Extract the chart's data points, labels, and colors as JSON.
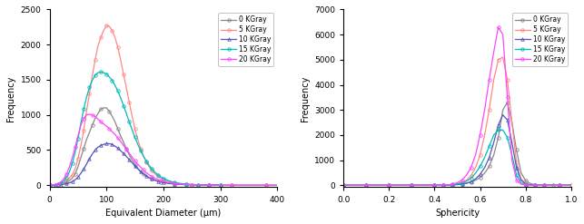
{
  "left_chart": {
    "xlabel": "Equivalent Diameter (μm)",
    "ylabel": "Frequency",
    "xlim": [
      0,
      400
    ],
    "ylim": [
      -30,
      2500
    ],
    "yticks": [
      0,
      500,
      1000,
      1500,
      2000,
      2500
    ],
    "xticks": [
      0,
      100,
      200,
      300,
      400
    ],
    "series": {
      "0 KGray": {
        "color": "#888888",
        "marker": "o",
        "x": [
          0,
          5,
          10,
          15,
          20,
          25,
          30,
          35,
          40,
          45,
          50,
          55,
          60,
          65,
          70,
          75,
          80,
          85,
          90,
          95,
          100,
          105,
          110,
          115,
          120,
          125,
          130,
          135,
          140,
          145,
          150,
          155,
          160,
          165,
          170,
          175,
          180,
          185,
          190,
          195,
          200,
          210,
          220,
          230,
          240,
          250,
          260,
          270,
          280,
          290,
          300,
          320,
          340,
          360,
          380,
          400
        ],
        "y": [
          0,
          2,
          5,
          10,
          18,
          28,
          45,
          65,
          100,
          160,
          260,
          390,
          520,
          650,
          750,
          850,
          950,
          1020,
          1080,
          1100,
          1100,
          1050,
          980,
          900,
          800,
          700,
          610,
          520,
          430,
          360,
          290,
          240,
          195,
          160,
          130,
          105,
          88,
          72,
          58,
          47,
          38,
          28,
          20,
          14,
          10,
          7,
          5,
          4,
          3,
          2,
          1,
          0,
          0,
          0,
          0,
          0
        ]
      },
      "5 KGray": {
        "color": "#ff8888",
        "marker": "o",
        "x": [
          0,
          5,
          10,
          15,
          20,
          25,
          30,
          35,
          40,
          45,
          50,
          55,
          60,
          65,
          70,
          75,
          80,
          85,
          90,
          95,
          100,
          105,
          110,
          115,
          120,
          125,
          130,
          135,
          140,
          145,
          150,
          155,
          160,
          165,
          170,
          175,
          180,
          185,
          190,
          195,
          200,
          210,
          220,
          230,
          240,
          250,
          260,
          270,
          280,
          290,
          300,
          320
        ],
        "y": [
          0,
          2,
          5,
          12,
          22,
          40,
          65,
          100,
          150,
          230,
          380,
          560,
          780,
          1050,
          1300,
          1550,
          1780,
          1980,
          2100,
          2200,
          2270,
          2260,
          2200,
          2100,
          1960,
          1780,
          1580,
          1380,
          1180,
          980,
          800,
          650,
          520,
          415,
          330,
          260,
          205,
          162,
          128,
          101,
          80,
          50,
          32,
          20,
          13,
          8,
          5,
          3,
          2,
          1,
          0,
          0
        ]
      },
      "10 KGray": {
        "color": "#5555bb",
        "marker": "^",
        "x": [
          0,
          5,
          10,
          15,
          20,
          25,
          30,
          35,
          40,
          45,
          50,
          55,
          60,
          65,
          70,
          75,
          80,
          85,
          90,
          95,
          100,
          105,
          110,
          115,
          120,
          125,
          130,
          135,
          140,
          145,
          150,
          155,
          160,
          165,
          170,
          175,
          180,
          185,
          190,
          195,
          200,
          210,
          220,
          230,
          240,
          250,
          260,
          270,
          280,
          290,
          300
        ],
        "y": [
          0,
          1,
          2,
          5,
          8,
          14,
          22,
          33,
          50,
          75,
          115,
          168,
          230,
          300,
          375,
          440,
          500,
          540,
          565,
          580,
          590,
          590,
          578,
          555,
          525,
          490,
          450,
          408,
          365,
          320,
          275,
          232,
          193,
          159,
          130,
          106,
          86,
          70,
          57,
          46,
          37,
          24,
          15,
          10,
          6,
          4,
          3,
          2,
          1,
          1,
          0
        ]
      },
      "15 KGray": {
        "color": "#00bbbb",
        "marker": "o",
        "x": [
          0,
          5,
          10,
          15,
          20,
          25,
          30,
          35,
          40,
          45,
          50,
          55,
          60,
          65,
          70,
          75,
          80,
          85,
          90,
          95,
          100,
          105,
          110,
          115,
          120,
          125,
          130,
          135,
          140,
          145,
          150,
          155,
          160,
          165,
          170,
          175,
          180,
          185,
          190,
          195,
          200,
          210,
          220,
          230,
          240,
          250,
          260,
          270,
          280,
          290,
          300
        ],
        "y": [
          0,
          2,
          5,
          15,
          30,
          60,
          110,
          190,
          310,
          470,
          660,
          880,
          1080,
          1250,
          1390,
          1490,
          1560,
          1600,
          1610,
          1600,
          1580,
          1540,
          1490,
          1420,
          1340,
          1240,
          1130,
          1020,
          900,
          790,
          680,
          580,
          490,
          410,
          340,
          280,
          230,
          185,
          150,
          120,
          95,
          60,
          38,
          24,
          15,
          9,
          6,
          4,
          2,
          1,
          0
        ]
      },
      "20 KGray": {
        "color": "#ff44ff",
        "marker": "o",
        "x": [
          0,
          5,
          10,
          15,
          20,
          25,
          30,
          35,
          40,
          45,
          50,
          55,
          60,
          65,
          70,
          75,
          80,
          85,
          90,
          95,
          100,
          105,
          110,
          115,
          120,
          125,
          130,
          135,
          140,
          145,
          150,
          155,
          160,
          165,
          170,
          175,
          180,
          185,
          190,
          195,
          200,
          210,
          220,
          230,
          240,
          250,
          260,
          270,
          280,
          290,
          300,
          320,
          340,
          360,
          380,
          400
        ],
        "y": [
          0,
          2,
          8,
          20,
          45,
          90,
          160,
          260,
          390,
          540,
          700,
          850,
          950,
          1000,
          1010,
          1000,
          975,
          940,
          900,
          870,
          840,
          800,
          760,
          720,
          670,
          620,
          565,
          510,
          455,
          400,
          348,
          300,
          255,
          215,
          178,
          147,
          121,
          99,
          81,
          66,
          53,
          35,
          23,
          15,
          9,
          6,
          4,
          2,
          1,
          1,
          0,
          0,
          0,
          0,
          0,
          0
        ]
      }
    }
  },
  "right_chart": {
    "xlabel": "Sphericity",
    "ylabel": "Frequency",
    "xlim": [
      0.0,
      1.0
    ],
    "ylim": [
      -80,
      7000
    ],
    "yticks": [
      0,
      1000,
      2000,
      3000,
      4000,
      5000,
      6000,
      7000
    ],
    "xticks": [
      0.0,
      0.2,
      0.4,
      0.6,
      0.8,
      1.0
    ],
    "series": {
      "0 KGray": {
        "color": "#888888",
        "marker": "o",
        "x": [
          0.0,
          0.05,
          0.1,
          0.15,
          0.2,
          0.25,
          0.3,
          0.35,
          0.4,
          0.42,
          0.44,
          0.46,
          0.48,
          0.5,
          0.52,
          0.54,
          0.56,
          0.58,
          0.6,
          0.62,
          0.64,
          0.66,
          0.68,
          0.7,
          0.72,
          0.74,
          0.76,
          0.78,
          0.8,
          0.82,
          0.84,
          0.86,
          0.88,
          0.9,
          0.92,
          0.95,
          1.0
        ],
        "y": [
          0,
          0,
          0,
          0,
          0,
          0,
          0,
          0,
          2,
          4,
          6,
          10,
          18,
          30,
          50,
          80,
          130,
          200,
          310,
          480,
          750,
          1200,
          1900,
          3000,
          3300,
          2500,
          1400,
          500,
          180,
          70,
          25,
          10,
          4,
          2,
          1,
          0,
          0
        ]
      },
      "5 KGray": {
        "color": "#ff8888",
        "marker": "o",
        "x": [
          0.0,
          0.05,
          0.1,
          0.15,
          0.2,
          0.25,
          0.3,
          0.35,
          0.4,
          0.42,
          0.44,
          0.46,
          0.48,
          0.5,
          0.52,
          0.54,
          0.56,
          0.58,
          0.6,
          0.62,
          0.64,
          0.66,
          0.68,
          0.7,
          0.72,
          0.74,
          0.76,
          0.78,
          0.8,
          0.82,
          0.84,
          0.86,
          0.88,
          0.9,
          0.95,
          1.0
        ],
        "y": [
          0,
          0,
          0,
          0,
          0,
          0,
          0,
          0,
          2,
          4,
          8,
          15,
          30,
          60,
          110,
          200,
          380,
          700,
          1200,
          2000,
          3000,
          4200,
          5000,
          5100,
          4200,
          2500,
          900,
          250,
          80,
          25,
          8,
          3,
          1,
          0,
          0,
          0
        ]
      },
      "10 KGray": {
        "color": "#5555bb",
        "marker": "^",
        "x": [
          0.0,
          0.05,
          0.1,
          0.15,
          0.2,
          0.25,
          0.3,
          0.35,
          0.4,
          0.42,
          0.44,
          0.46,
          0.48,
          0.5,
          0.52,
          0.54,
          0.56,
          0.58,
          0.6,
          0.62,
          0.64,
          0.66,
          0.68,
          0.7,
          0.72,
          0.74,
          0.76,
          0.78,
          0.8,
          0.82,
          0.84,
          0.86,
          0.88,
          0.9,
          0.95,
          1.0
        ],
        "y": [
          0,
          0,
          0,
          0,
          0,
          0,
          0,
          0,
          1,
          2,
          4,
          8,
          15,
          25,
          45,
          80,
          140,
          250,
          430,
          700,
          1100,
          1700,
          2400,
          2800,
          2600,
          1700,
          700,
          200,
          55,
          18,
          6,
          2,
          1,
          0,
          0,
          0
        ]
      },
      "15 KGray": {
        "color": "#00bbbb",
        "marker": "o",
        "x": [
          0.0,
          0.05,
          0.1,
          0.15,
          0.2,
          0.25,
          0.3,
          0.35,
          0.4,
          0.42,
          0.44,
          0.46,
          0.48,
          0.5,
          0.52,
          0.54,
          0.56,
          0.58,
          0.6,
          0.62,
          0.64,
          0.66,
          0.68,
          0.7,
          0.72,
          0.74,
          0.76,
          0.78,
          0.8,
          0.82,
          0.84,
          0.86,
          0.88,
          0.9,
          0.95,
          1.0
        ],
        "y": [
          0,
          0,
          0,
          0,
          0,
          0,
          0,
          0,
          2,
          3,
          6,
          12,
          22,
          45,
          90,
          160,
          280,
          480,
          750,
          1100,
          1550,
          2000,
          2200,
          2200,
          1900,
          1200,
          400,
          100,
          25,
          8,
          2,
          1,
          0,
          0,
          0,
          0
        ]
      },
      "20 KGray": {
        "color": "#ff44ff",
        "marker": "o",
        "x": [
          0.0,
          0.05,
          0.1,
          0.15,
          0.2,
          0.25,
          0.3,
          0.35,
          0.4,
          0.42,
          0.44,
          0.46,
          0.48,
          0.5,
          0.52,
          0.54,
          0.56,
          0.58,
          0.6,
          0.62,
          0.64,
          0.66,
          0.68,
          0.7,
          0.72,
          0.74,
          0.76,
          0.78,
          0.8,
          0.82,
          0.84,
          0.86,
          0.88,
          0.9,
          0.95,
          1.0
        ],
        "y": [
          0,
          0,
          0,
          0,
          0,
          0,
          0,
          0,
          2,
          5,
          10,
          20,
          45,
          100,
          200,
          400,
          700,
          1200,
          2000,
          3000,
          4200,
          5300,
          6300,
          6000,
          3500,
          1000,
          200,
          40,
          8,
          2,
          0,
          0,
          0,
          0,
          0,
          0
        ]
      }
    }
  },
  "series_order": [
    "0 KGray",
    "5 KGray",
    "10 KGray",
    "15 KGray",
    "20 KGray"
  ],
  "marker_size": 2.5,
  "marker_every": 4,
  "linewidth": 0.9,
  "background_color": "#ffffff"
}
